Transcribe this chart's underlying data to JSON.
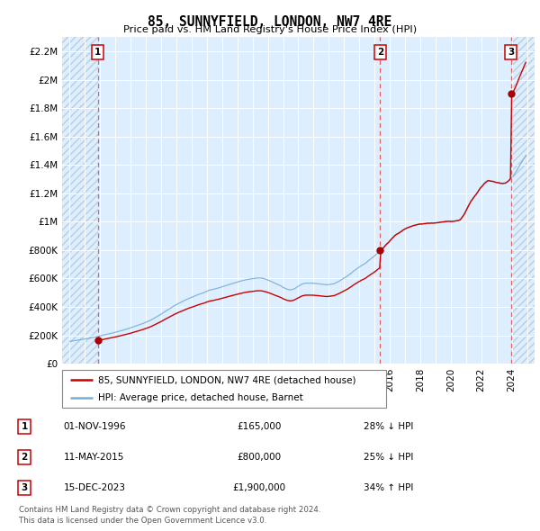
{
  "title": "85, SUNNYFIELD, LONDON, NW7 4RE",
  "subtitle": "Price paid vs. HM Land Registry's House Price Index (HPI)",
  "ylim": [
    0,
    2300000
  ],
  "yticks": [
    0,
    200000,
    400000,
    600000,
    800000,
    1000000,
    1200000,
    1400000,
    1600000,
    1800000,
    2000000,
    2200000
  ],
  "ytick_labels": [
    "£0",
    "£200K",
    "£400K",
    "£600K",
    "£800K",
    "£1M",
    "£1.2M",
    "£1.4M",
    "£1.6M",
    "£1.8M",
    "£2M",
    "£2.2M"
  ],
  "xlim_start": 1994.5,
  "xlim_end": 2025.5,
  "background_color": "#ddeeff",
  "hatch_color": "#b8cfe0",
  "grid_color": "#ffffff",
  "sale_dates": [
    1996.84,
    2015.37,
    2023.96
  ],
  "sale_prices": [
    165000,
    800000,
    1900000
  ],
  "sale_labels": [
    "1",
    "2",
    "3"
  ],
  "label_color": "#cc0000",
  "sold_line_color": "#cc0000",
  "hpi_line_color": "#7aafd4",
  "legend_sold": "85, SUNNYFIELD, LONDON, NW7 4RE (detached house)",
  "legend_hpi": "HPI: Average price, detached house, Barnet",
  "transactions": [
    {
      "num": "1",
      "date": "01-NOV-1996",
      "price": "£165,000",
      "hpi": "28% ↓ HPI"
    },
    {
      "num": "2",
      "date": "11-MAY-2015",
      "price": "£800,000",
      "hpi": "25% ↓ HPI"
    },
    {
      "num": "3",
      "date": "15-DEC-2023",
      "price": "£1,900,000",
      "hpi": "34% ↑ HPI"
    }
  ],
  "footnote": "Contains HM Land Registry data © Crown copyright and database right 2024.\nThis data is licensed under the Open Government Licence v3.0.",
  "dashed_line_color": "#e06060",
  "marker_color": "#aa0000"
}
